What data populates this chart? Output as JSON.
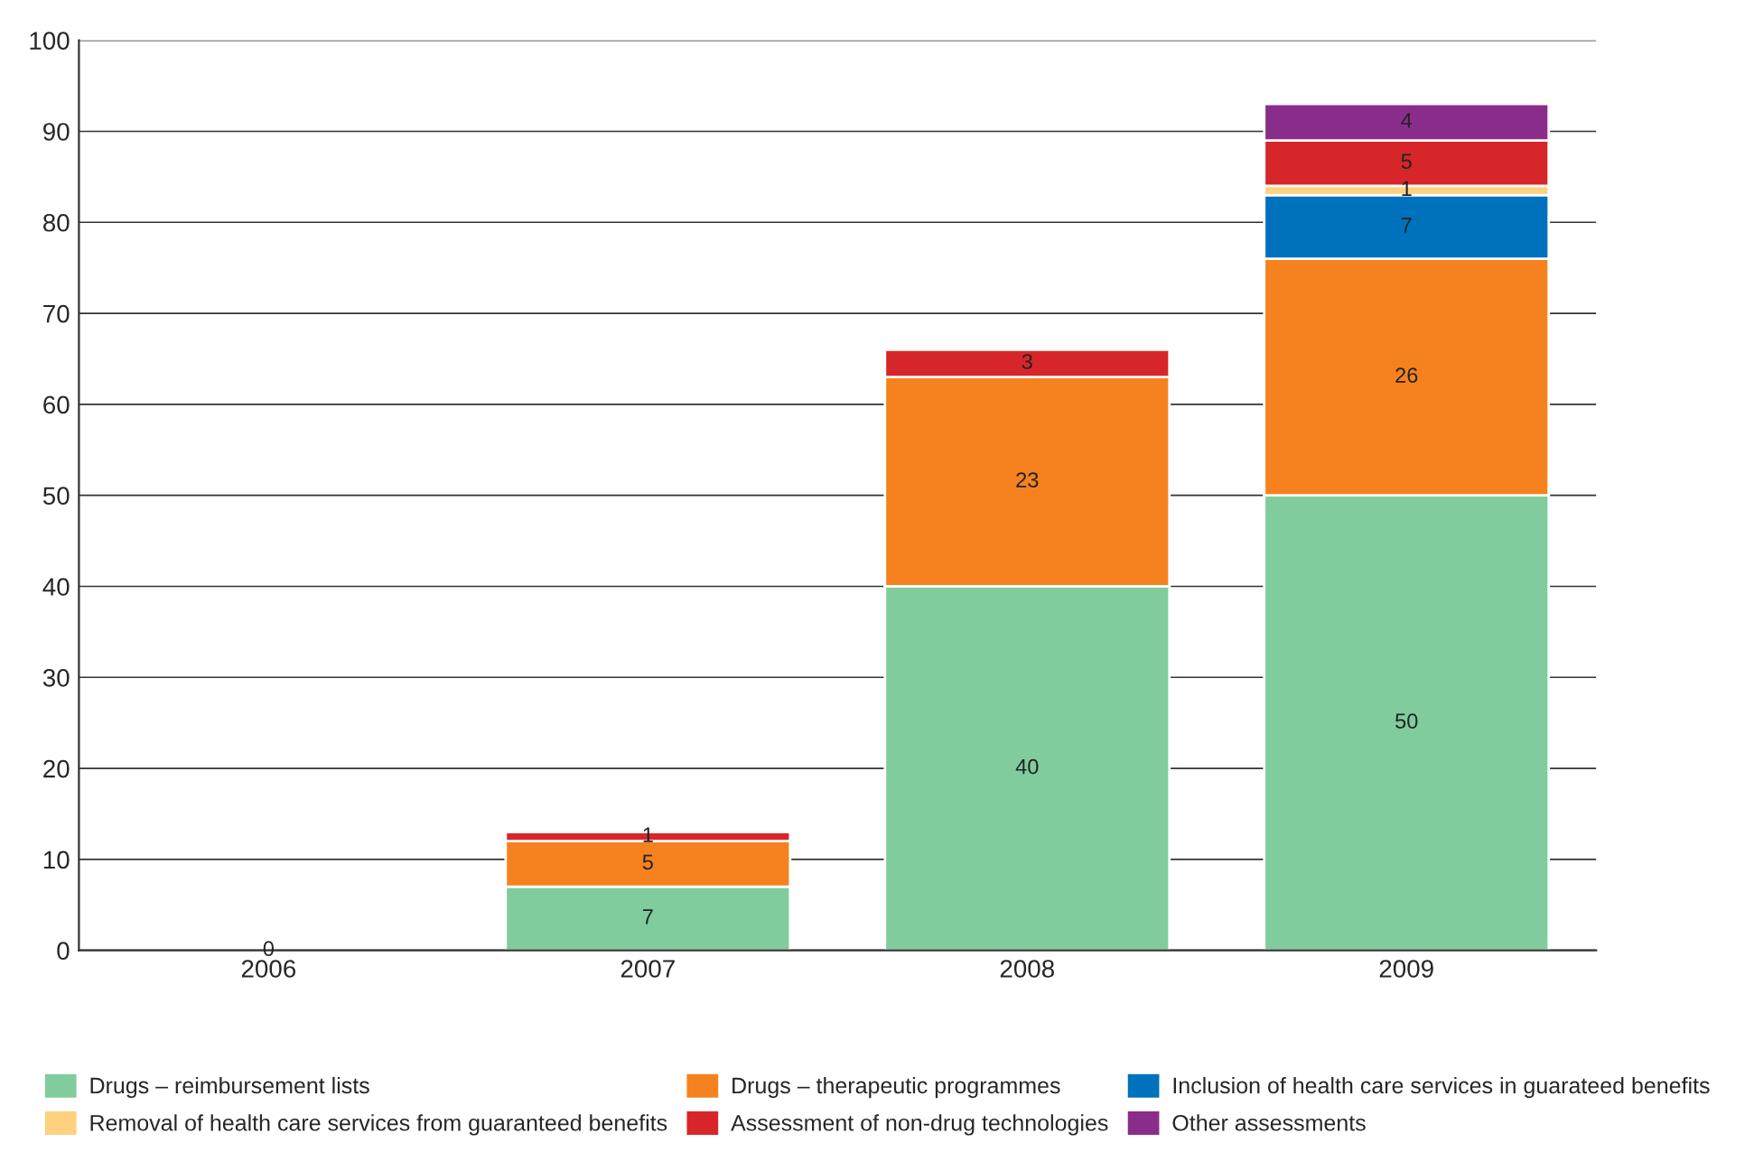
{
  "chart_data": {
    "type": "bar",
    "stacked": true,
    "categories": [
      "2006",
      "2007",
      "2008",
      "2009"
    ],
    "series": [
      {
        "name": "Drugs – reimbursement lists",
        "color": "#80cc9c",
        "values": [
          0,
          7,
          40,
          50
        ],
        "value_labels": [
          "0",
          "7",
          "40",
          "50"
        ]
      },
      {
        "name": "Drugs – therapeutic programmes",
        "color": "#f5821f",
        "values": [
          0,
          5,
          23,
          26
        ],
        "value_labels": [
          null,
          "5",
          "23",
          "26"
        ]
      },
      {
        "name": "Inclusion of health care services in guarateed benefits",
        "color": "#0071bc",
        "values": [
          0,
          0,
          0,
          7
        ],
        "value_labels": [
          null,
          null,
          null,
          "7"
        ]
      },
      {
        "name": "Removal of health care services from guaranteed benefits",
        "color": "#fdd17f",
        "values": [
          0,
          0,
          0,
          1
        ],
        "value_labels": [
          null,
          null,
          null,
          "1"
        ]
      },
      {
        "name": "Assessment of non-drug technologies",
        "color": "#d7262a",
        "values": [
          0,
          1,
          3,
          5
        ],
        "value_labels": [
          null,
          "1",
          "3",
          "5"
        ]
      },
      {
        "name": "Other assessments",
        "color": "#8a2d8a",
        "values": [
          0,
          0,
          0,
          4
        ],
        "value_labels": [
          null,
          null,
          null,
          "4"
        ]
      }
    ],
    "ylim": [
      0,
      100
    ],
    "yticks": [
      0,
      10,
      20,
      30,
      40,
      50,
      60,
      70,
      80,
      90,
      100
    ],
    "grid": "y",
    "legend": "bottom"
  }
}
